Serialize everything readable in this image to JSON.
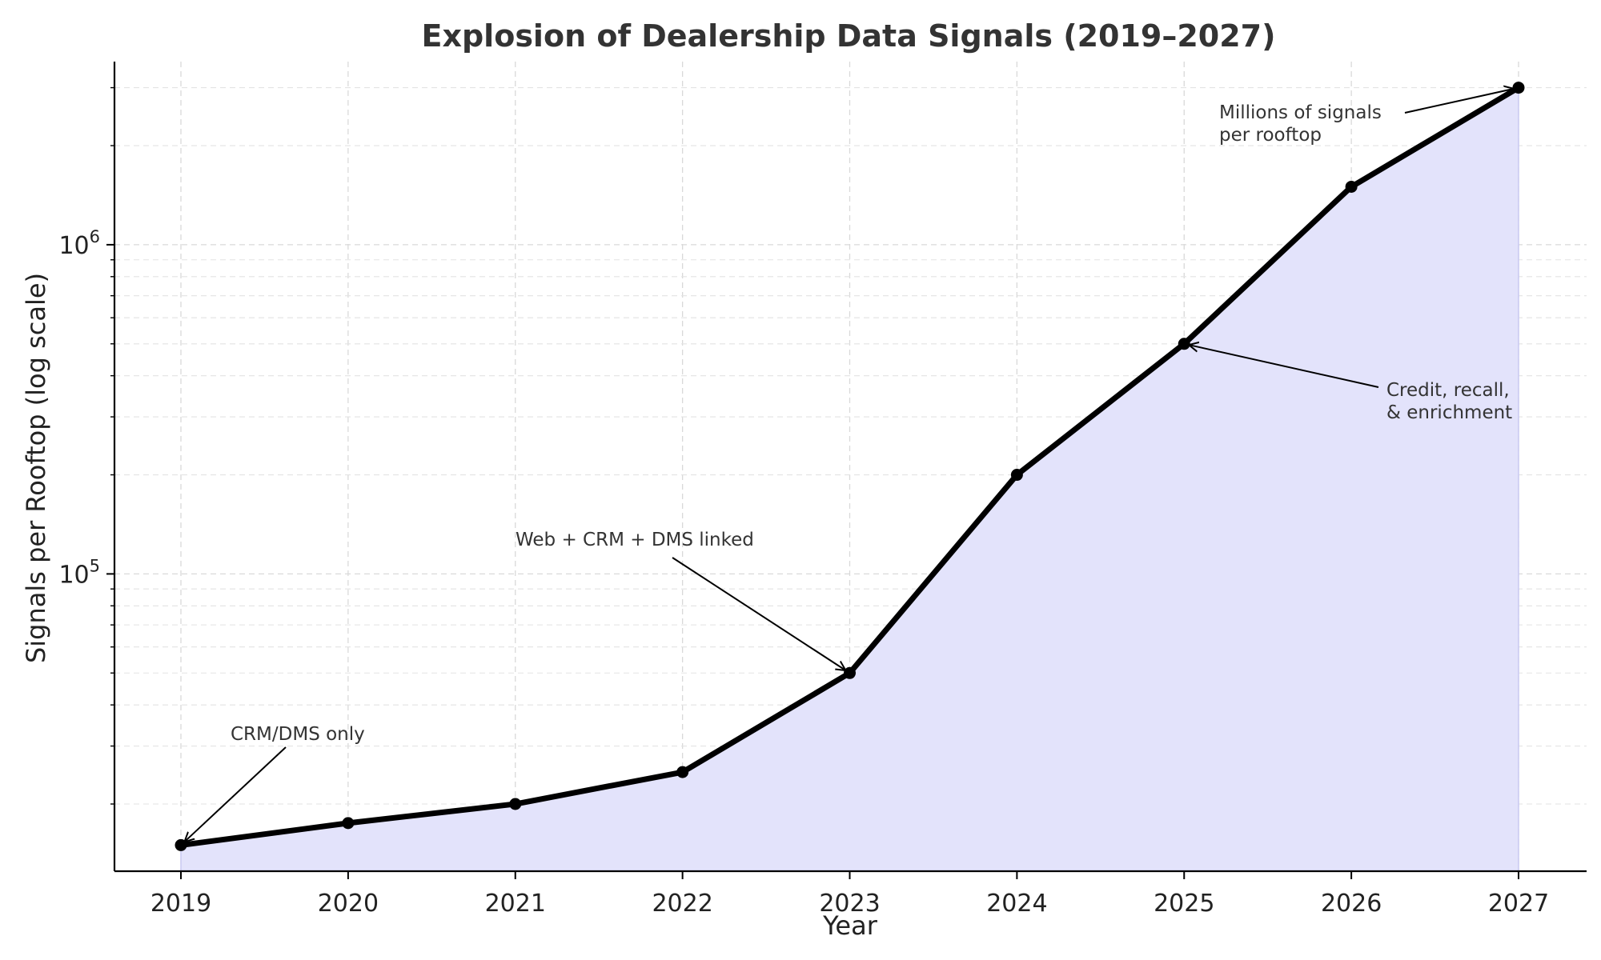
{
  "chart_data": {
    "type": "line",
    "title": "Explosion of Dealership Data Signals (2019–2027)",
    "xlabel": "Year",
    "ylabel": "Signals per Rooftop (log scale)",
    "x": [
      2019,
      2020,
      2021,
      2022,
      2023,
      2024,
      2025,
      2026,
      2027
    ],
    "x_tick_labels": [
      "2019",
      "2020",
      "2021",
      "2022",
      "2023",
      "2024",
      "2025",
      "2026",
      "2027"
    ],
    "y_scale": "log",
    "ylim": [
      12500,
      3600000
    ],
    "y_major_ticks": [
      {
        "value": 100000,
        "base": "10",
        "exp": "5"
      },
      {
        "value": 1000000,
        "base": "10",
        "exp": "6"
      }
    ],
    "series": [
      {
        "values": [
          15000,
          17500,
          20000,
          25000,
          50000,
          200000,
          500000,
          1500000,
          3000000
        ],
        "color": "#000000",
        "fill_color": "#e3e3fb"
      }
    ],
    "grid": true,
    "annotations": [
      {
        "lines": [
          "CRM/DMS only"
        ],
        "x": 2019,
        "y": 15000
      },
      {
        "lines": [
          "Web + CRM + DMS linked"
        ],
        "x": 2023,
        "y": 50000
      },
      {
        "lines": [
          "Credit, recall,",
          "& enrichment"
        ],
        "x": 2025,
        "y": 500000
      },
      {
        "lines": [
          "Millions of signals",
          "per rooftop"
        ],
        "x": 2027,
        "y": 3000000
      }
    ]
  }
}
